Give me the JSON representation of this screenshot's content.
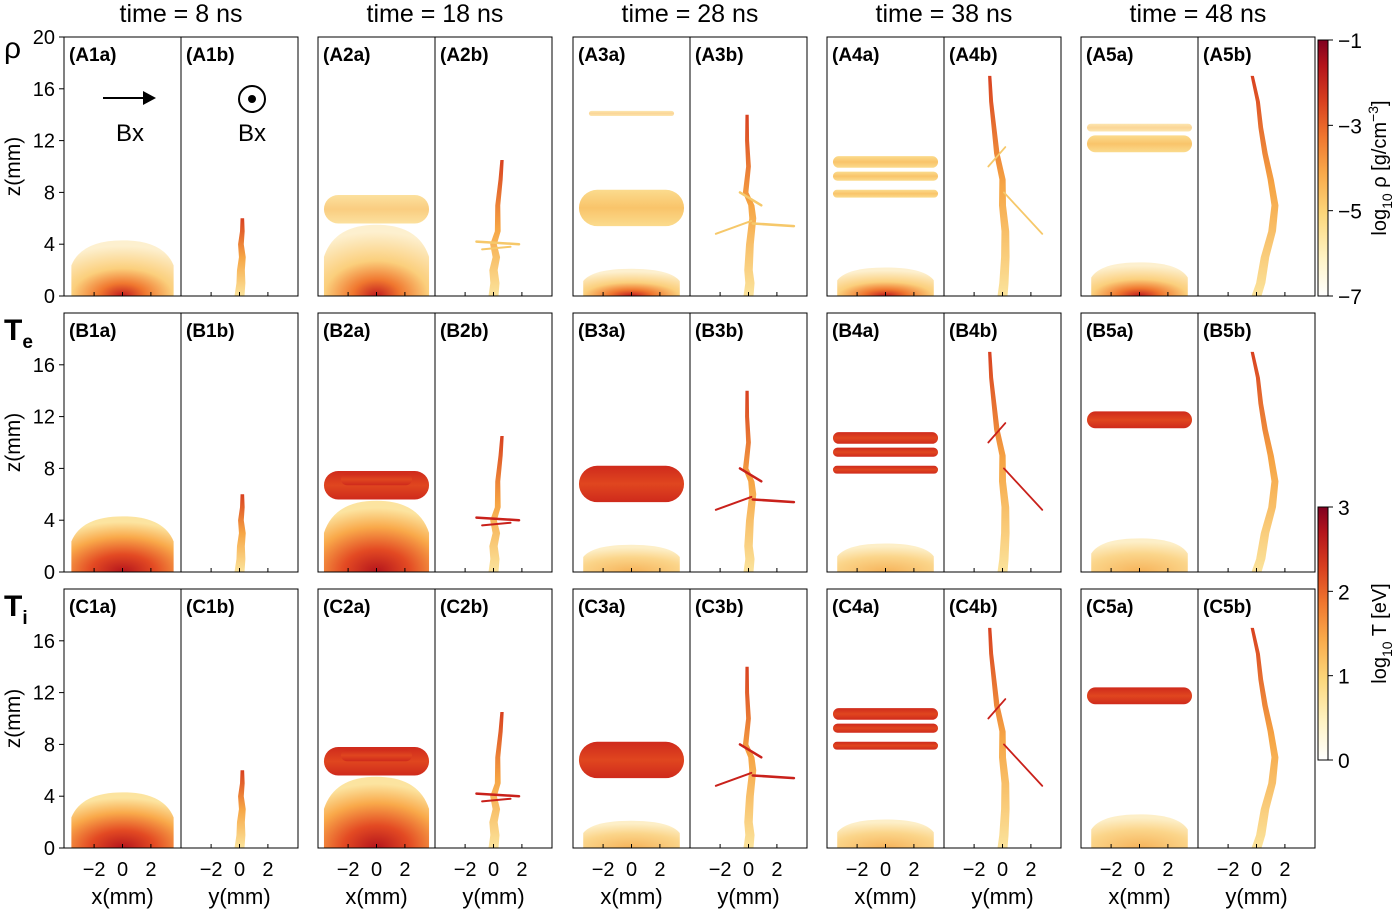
{
  "time_titles": [
    "time = 8 ns",
    "time = 18 ns",
    "time = 28 ns",
    "time = 38 ns",
    "time = 48 ns"
  ],
  "row_labels": [
    {
      "main": "ρ",
      "sub": ""
    },
    {
      "main": "T",
      "sub": "e"
    },
    {
      "main": "T",
      "sub": "i"
    }
  ],
  "panel_labels": [
    [
      "(A1a)",
      "(A1b)",
      "(A2a)",
      "(A2b)",
      "(A3a)",
      "(A3b)",
      "(A4a)",
      "(A4b)",
      "(A5a)",
      "(A5b)"
    ],
    [
      "(B1a)",
      "(B1b)",
      "(B2a)",
      "(B2b)",
      "(B3a)",
      "(B3b)",
      "(B4a)",
      "(B4b)",
      "(B5a)",
      "(B5b)"
    ],
    [
      "(C1a)",
      "(C1b)",
      "(C2a)",
      "(C2b)",
      "(C3a)",
      "(C3b)",
      "(C4a)",
      "(C4b)",
      "(C5a)",
      "(C5b)"
    ]
  ],
  "y_axis": {
    "label": "z(mm)",
    "row_ticks": [
      [
        "0",
        "4",
        "8",
        "12",
        "16",
        "20"
      ],
      [
        "0",
        "4",
        "8",
        "12",
        "16"
      ],
      [
        "0",
        "4",
        "8",
        "12",
        "16"
      ]
    ]
  },
  "x_axis": {
    "tick_labels": [
      "−2",
      "0",
      "2"
    ],
    "labels_a": "x(mm)",
    "labels_b": "y(mm)"
  },
  "annotations": {
    "bx_left": "Bx",
    "bx_right": "Bx"
  },
  "colorbars": {
    "density": {
      "label_main": "log",
      "label_sub": "10",
      "label_rest": " ρ [g/cm",
      "label_sup": "−3",
      "label_end": "]",
      "ticks": [
        "−1",
        "−3",
        "−5",
        "−7"
      ],
      "range": [
        -7,
        -1
      ]
    },
    "temperature": {
      "label_main": "log",
      "label_sub": "10",
      "label_rest": " T [eV]",
      "ticks": [
        "3",
        "2",
        "1",
        "0"
      ],
      "range": [
        0,
        3
      ]
    }
  },
  "colormap": [
    "#ffffff",
    "#fff3c4",
    "#fcd77b",
    "#f9a94a",
    "#f0772f",
    "#d8401f",
    "#b4141c",
    "#800020"
  ]
}
